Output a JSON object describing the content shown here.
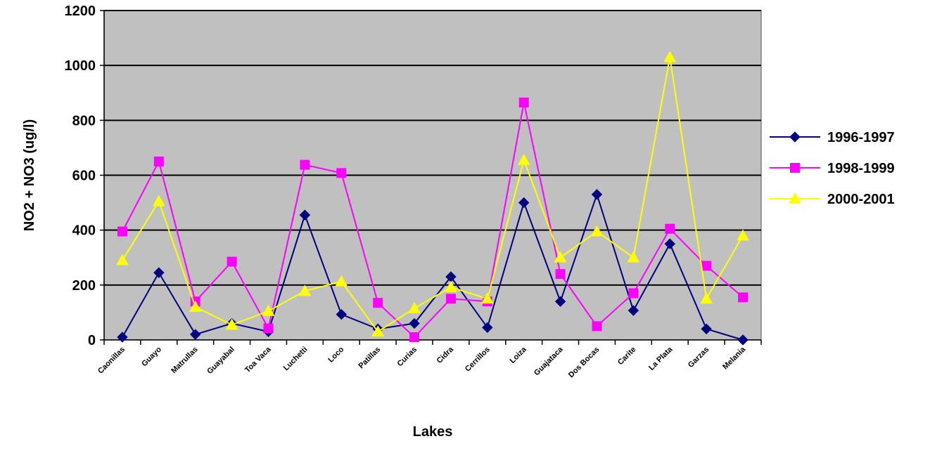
{
  "chart_data": {
    "type": "line",
    "title": "",
    "xlabel": "Lakes",
    "ylabel": "NO2 + NO3 (ug/l)",
    "ylim": [
      0,
      1200
    ],
    "yticks": [
      0,
      200,
      400,
      600,
      800,
      1000,
      1200
    ],
    "grid": true,
    "legend_position": "right",
    "plot_background": "#C0C0C0",
    "categories": [
      "Caonillas",
      "Guayo",
      "Matrullas",
      "Guayabal",
      "Toa Vaca",
      "Luchetti",
      "Loco",
      "Patillas",
      "Curias",
      "Cidra",
      "Cerrillos",
      "Loiza",
      "Guajataca",
      "Dos Bocas",
      "Carite",
      "La Plata",
      "Garzas",
      "Melania"
    ],
    "series": [
      {
        "name": "1996-1997",
        "color": "#000080",
        "marker": "diamond",
        "values": [
          10,
          245,
          20,
          60,
          30,
          455,
          93,
          40,
          60,
          230,
          45,
          500,
          140,
          530,
          107,
          350,
          40,
          0
        ]
      },
      {
        "name": "1998-1999",
        "color": "#FF00FF",
        "marker": "square",
        "values": [
          395,
          650,
          140,
          285,
          42,
          638,
          608,
          135,
          10,
          150,
          140,
          865,
          240,
          50,
          170,
          405,
          270,
          155
        ]
      },
      {
        "name": "2000-2001",
        "color": "#FFFF00",
        "marker": "triangle",
        "values": [
          290,
          505,
          120,
          55,
          105,
          178,
          213,
          30,
          115,
          192,
          150,
          655,
          300,
          395,
          300,
          1030,
          150,
          380
        ]
      }
    ]
  }
}
